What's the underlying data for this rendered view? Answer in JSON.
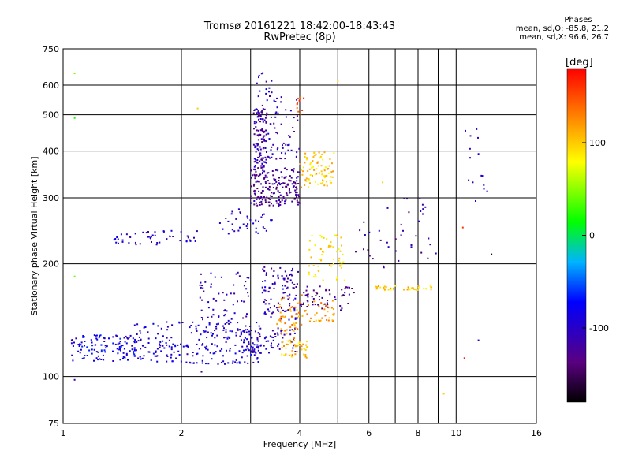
{
  "header": {
    "title_line1": "Tromsø 20161221 18:42:00-18:43:43",
    "title_line2": "RwPretec (8p)"
  },
  "phases": {
    "label": "Phases",
    "o_line": "mean, sd,O:  -85.8, 21.2",
    "x_line": "mean, sd,X:  96.6, 26.7"
  },
  "chart_data": {
    "type": "scatter",
    "title": "Tromsø 20161221 18:42:00-18:43:43",
    "subtitle": "RwPretec (8p)",
    "xlabel": "Frequency [MHz]",
    "ylabel": "Stationary phase Virtual Height [km]",
    "x_scale": "log",
    "y_scale": "log",
    "xlim": [
      1,
      16
    ],
    "ylim": [
      75,
      750
    ],
    "x_ticks": [
      1,
      2,
      4,
      6,
      8,
      10,
      16
    ],
    "y_ticks": [
      75,
      100,
      200,
      300,
      400,
      500,
      600,
      750
    ],
    "x_grid": [
      1,
      2,
      3,
      4,
      5,
      6,
      7,
      8,
      9,
      10,
      16
    ],
    "y_grid": [
      75,
      100,
      200,
      300,
      400,
      500,
      600,
      750
    ],
    "grid": true,
    "colorbar": {
      "label": "[deg]",
      "range": [
        -180,
        180
      ],
      "ticks": [
        100,
        0,
        -100
      ],
      "colors": [
        "#000000",
        "#5a0080",
        "#0000ff",
        "#00b4ff",
        "#00ff00",
        "#ffff00",
        "#ff8000",
        "#ff0000"
      ]
    },
    "clusters": [
      {
        "name": "",
        "x": [
          1.05,
          1.6
        ],
        "y": [
          110,
          130
        ],
        "phase": -85,
        "n": 120
      },
      {
        "name": "",
        "x": [
          1.5,
          3.2
        ],
        "y": [
          108,
          140
        ],
        "phase": -90,
        "n": 240
      },
      {
        "name": "",
        "x": [
          2.8,
          3.9
        ],
        "y": [
          115,
          135
        ],
        "phase": -100,
        "n": 80
      },
      {
        "name": "",
        "x": [
          1.3,
          2.2
        ],
        "y": [
          225,
          245
        ],
        "phase": -100,
        "n": 50
      },
      {
        "name": "",
        "x": [
          2.5,
          3.4
        ],
        "y": [
          240,
          280
        ],
        "phase": -95,
        "n": 40
      },
      {
        "name": "",
        "x": [
          3.0,
          4.0
        ],
        "y": [
          285,
          360
        ],
        "phase": -125,
        "n": 200
      },
      {
        "name": "",
        "x": [
          3.05,
          3.3
        ],
        "y": [
          360,
          530
        ],
        "phase": -115,
        "n": 120
      },
      {
        "name": "",
        "x": [
          3.3,
          4.0
        ],
        "y": [
          380,
          560
        ],
        "phase": -110,
        "n": 60
      },
      {
        "name": "",
        "x": [
          3.1,
          3.4
        ],
        "y": [
          560,
          650
        ],
        "phase": -100,
        "n": 15
      },
      {
        "name": "",
        "x": [
          3.2,
          4.0
        ],
        "y": [
          140,
          200
        ],
        "phase": -105,
        "n": 100
      },
      {
        "name": "",
        "x": [
          2.2,
          3.0
        ],
        "y": [
          140,
          190
        ],
        "phase": -110,
        "n": 60
      },
      {
        "name": "",
        "x": [
          3.6,
          4.2
        ],
        "y": [
          112,
          125
        ],
        "phase": 110,
        "n": 45
      },
      {
        "name": "",
        "x": [
          3.5,
          4.1
        ],
        "y": [
          125,
          165
        ],
        "phase": 120,
        "n": 50
      },
      {
        "name": "",
        "x": [
          4.0,
          4.9
        ],
        "y": [
          320,
          400
        ],
        "phase": 100,
        "n": 80
      },
      {
        "name": "",
        "x": [
          3.9,
          4.1
        ],
        "y": [
          480,
          560
        ],
        "phase": 150,
        "n": 12
      },
      {
        "name": "",
        "x": [
          4.0,
          4.9
        ],
        "y": [
          140,
          160
        ],
        "phase": 120,
        "n": 40
      },
      {
        "name": "",
        "x": [
          4.2,
          5.2
        ],
        "y": [
          180,
          240
        ],
        "phase": 90,
        "n": 60
      },
      {
        "name": "",
        "x": [
          4.0,
          5.5
        ],
        "y": [
          150,
          175
        ],
        "phase": -130,
        "n": 60
      },
      {
        "name": "",
        "x": [
          6.0,
          8.7
        ],
        "y": [
          170,
          175
        ],
        "phase": 100,
        "n": 40
      },
      {
        "name": "",
        "x": [
          5.5,
          9.0
        ],
        "y": [
          190,
          300
        ],
        "phase": -120,
        "n": 40
      },
      {
        "name": "",
        "x": [
          10.5,
          12.0
        ],
        "y": [
          280,
          480
        ],
        "phase": -110,
        "n": 15
      }
    ],
    "sparse_points": [
      {
        "x": 1.07,
        "y": 645,
        "phase": 45
      },
      {
        "x": 1.07,
        "y": 490,
        "phase": 20
      },
      {
        "x": 1.07,
        "y": 185,
        "phase": 40
      },
      {
        "x": 1.07,
        "y": 98,
        "phase": -120
      },
      {
        "x": 2.25,
        "y": 103,
        "phase": -120
      },
      {
        "x": 2.2,
        "y": 520,
        "phase": 100
      },
      {
        "x": 5.0,
        "y": 615,
        "phase": 100
      },
      {
        "x": 6.5,
        "y": 330,
        "phase": 100
      },
      {
        "x": 9.3,
        "y": 90,
        "phase": 100
      },
      {
        "x": 10.5,
        "y": 112,
        "phase": 170
      },
      {
        "x": 12.3,
        "y": 212,
        "phase": -160
      },
      {
        "x": 11.4,
        "y": 125,
        "phase": -100
      },
      {
        "x": 10.4,
        "y": 250,
        "phase": 160
      }
    ]
  }
}
